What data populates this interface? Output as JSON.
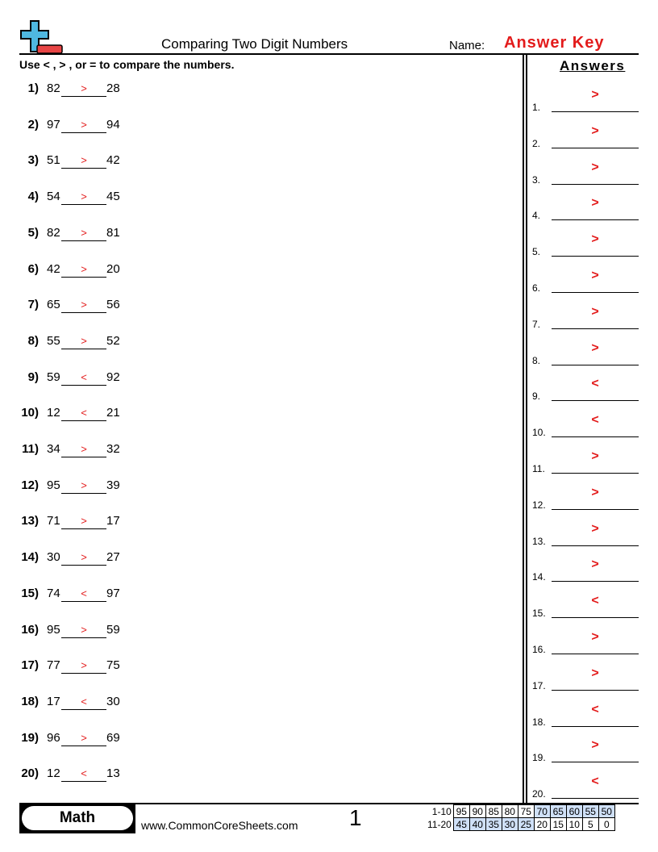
{
  "header": {
    "title": "Comparing Two Digit Numbers",
    "name_label": "Name:",
    "name_value": "Answer Key",
    "instructions": "Use < , > , or = to compare the numbers."
  },
  "answers_heading": "Answers",
  "problems": [
    {
      "n": "1)",
      "a": "82",
      "s": ">",
      "b": "28"
    },
    {
      "n": "2)",
      "a": "97",
      "s": ">",
      "b": "94"
    },
    {
      "n": "3)",
      "a": "51",
      "s": ">",
      "b": "42"
    },
    {
      "n": "4)",
      "a": "54",
      "s": ">",
      "b": "45"
    },
    {
      "n": "5)",
      "a": "82",
      "s": ">",
      "b": "81"
    },
    {
      "n": "6)",
      "a": "42",
      "s": ">",
      "b": "20"
    },
    {
      "n": "7)",
      "a": "65",
      "s": ">",
      "b": "56"
    },
    {
      "n": "8)",
      "a": "55",
      "s": ">",
      "b": "52"
    },
    {
      "n": "9)",
      "a": "59",
      "s": "<",
      "b": "92"
    },
    {
      "n": "10)",
      "a": "12",
      "s": "<",
      "b": "21"
    },
    {
      "n": "11)",
      "a": "34",
      "s": ">",
      "b": "32"
    },
    {
      "n": "12)",
      "a": "95",
      "s": ">",
      "b": "39"
    },
    {
      "n": "13)",
      "a": "71",
      "s": ">",
      "b": "17"
    },
    {
      "n": "14)",
      "a": "30",
      "s": ">",
      "b": "27"
    },
    {
      "n": "15)",
      "a": "74",
      "s": "<",
      "b": "97"
    },
    {
      "n": "16)",
      "a": "95",
      "s": ">",
      "b": "59"
    },
    {
      "n": "17)",
      "a": "77",
      "s": ">",
      "b": "75"
    },
    {
      "n": "18)",
      "a": "17",
      "s": "<",
      "b": "30"
    },
    {
      "n": "19)",
      "a": "96",
      "s": ">",
      "b": "69"
    },
    {
      "n": "20)",
      "a": "12",
      "s": "<",
      "b": "13"
    }
  ],
  "answers": [
    {
      "n": "1.",
      "s": ">"
    },
    {
      "n": "2.",
      "s": ">"
    },
    {
      "n": "3.",
      "s": ">"
    },
    {
      "n": "4.",
      "s": ">"
    },
    {
      "n": "5.",
      "s": ">"
    },
    {
      "n": "6.",
      "s": ">"
    },
    {
      "n": "7.",
      "s": ">"
    },
    {
      "n": "8.",
      "s": ">"
    },
    {
      "n": "9.",
      "s": "<"
    },
    {
      "n": "10.",
      "s": "<"
    },
    {
      "n": "11.",
      "s": ">"
    },
    {
      "n": "12.",
      "s": ">"
    },
    {
      "n": "13.",
      "s": ">"
    },
    {
      "n": "14.",
      "s": ">"
    },
    {
      "n": "15.",
      "s": "<"
    },
    {
      "n": "16.",
      "s": ">"
    },
    {
      "n": "17.",
      "s": ">"
    },
    {
      "n": "18.",
      "s": "<"
    },
    {
      "n": "19.",
      "s": ">"
    },
    {
      "n": "20.",
      "s": "<"
    }
  ],
  "footer": {
    "subject": "Math",
    "site": "www.CommonCoreSheets.com",
    "page": "1",
    "score_rows": [
      {
        "label": "1-10",
        "values": [
          "95",
          "90",
          "85",
          "80",
          "75",
          "70",
          "65",
          "60",
          "55",
          "50"
        ]
      },
      {
        "label": "11-20",
        "values": [
          "45",
          "40",
          "35",
          "30",
          "25",
          "20",
          "15",
          "10",
          "5",
          "0"
        ]
      }
    ]
  },
  "colors": {
    "accent": "#e31b1b",
    "logo_blue": "#4fb8e0",
    "logo_red": "#e84545",
    "score_highlight": "#cfe0f7"
  }
}
